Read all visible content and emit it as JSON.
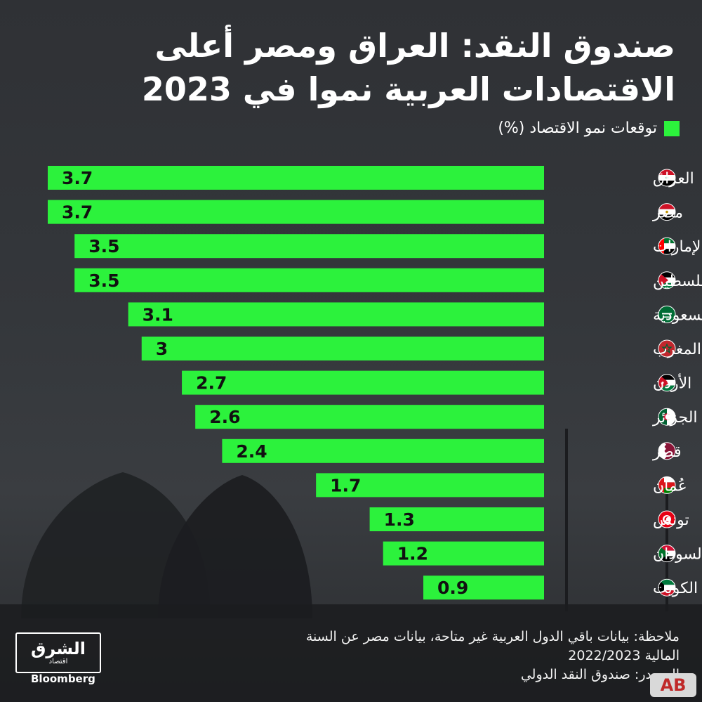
{
  "title_line1": "صندوق النقد: العراق ومصر أعلى",
  "title_line2": "الاقتصادات العربية نموا في 2023",
  "colors": {
    "bar": "#2cf23c",
    "background": "#2b2d31",
    "text": "#ffffff"
  },
  "chart_data": {
    "type": "bar",
    "orientation": "horizontal",
    "legend": "توقعات نمو الاقتصاد (%)",
    "legend_position": "top-right",
    "categories": [
      "العراق",
      "مصر",
      "الإمارات",
      "فلسطين",
      "السعودية",
      "المغرب",
      "الأردن",
      "الجزائر",
      "قطر",
      "عُمان",
      "تونس",
      "السودان",
      "الكويت"
    ],
    "flags": [
      "iraq-flag-icon",
      "egypt-flag-icon",
      "uae-flag-icon",
      "palestine-flag-icon",
      "saudi-flag-icon",
      "morocco-flag-icon",
      "jordan-flag-icon",
      "algeria-flag-icon",
      "qatar-flag-icon",
      "oman-flag-icon",
      "tunisia-flag-icon",
      "sudan-flag-icon",
      "kuwait-flag-icon"
    ],
    "values": [
      3.7,
      3.7,
      3.5,
      3.5,
      3.1,
      3,
      2.7,
      2.6,
      2.4,
      1.7,
      1.3,
      1.2,
      0.9
    ],
    "labels": [
      "3.7",
      "3.7",
      "3.5",
      "3.5",
      "3.1",
      "3",
      "2.7",
      "2.6",
      "2.4",
      "1.7",
      "1.3",
      "1.2",
      "0.9"
    ],
    "xlim": [
      0,
      3.7
    ],
    "bars_grow": "right-to-left",
    "grid": false
  },
  "note_line1": "ملاحظة: بيانات باقي الدول العربية غير متاحة، بيانات مصر عن السنة",
  "note_line2": "المالية 2022/2023",
  "source": "المصدر: صندوق النقد الدولي",
  "logo": {
    "main": "الشرق",
    "sub": "اقتصاد",
    "partner": "Bloomberg"
  },
  "corner_mark": "AB"
}
